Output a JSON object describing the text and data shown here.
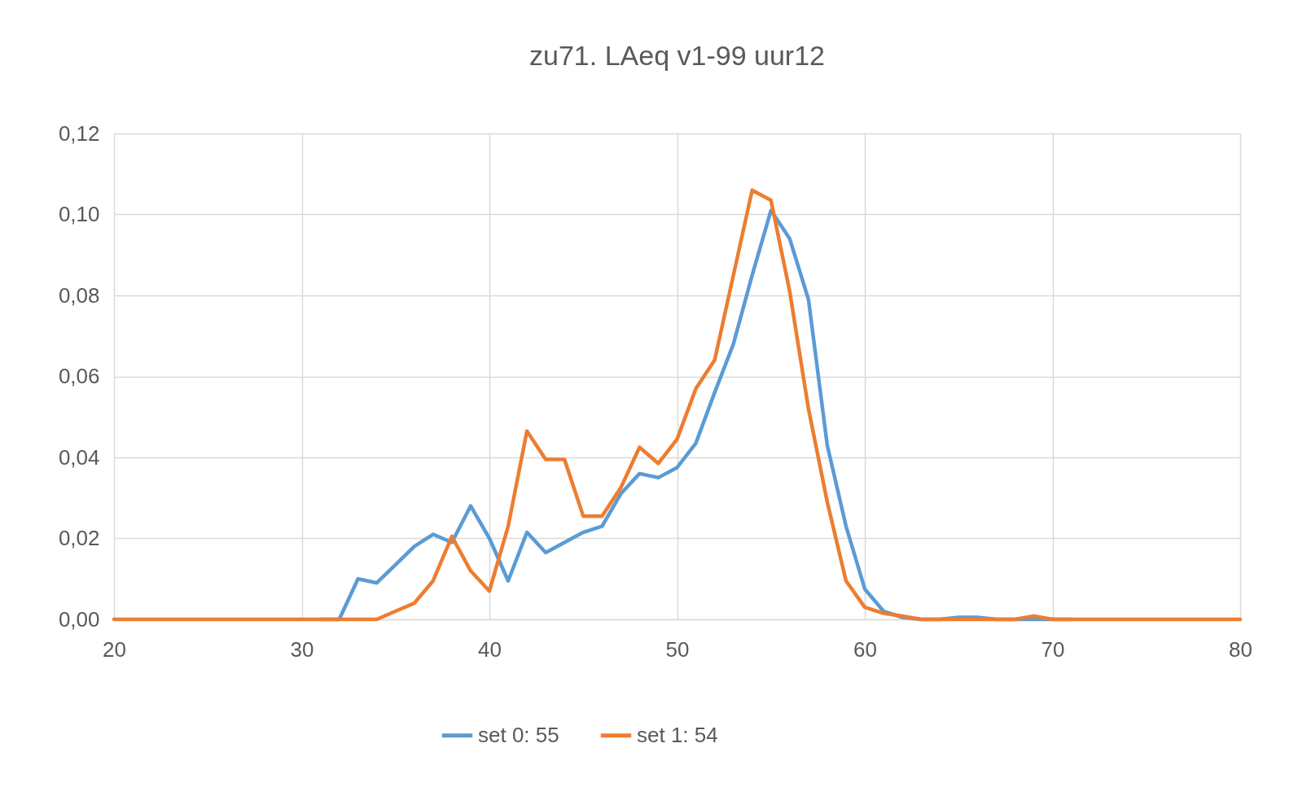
{
  "chart_data": {
    "type": "line",
    "title": "zu71. LAeq v1-99 uur12",
    "x": [
      20,
      21,
      22,
      23,
      24,
      25,
      26,
      27,
      28,
      29,
      30,
      31,
      32,
      33,
      34,
      35,
      36,
      37,
      38,
      39,
      40,
      41,
      42,
      43,
      44,
      45,
      46,
      47,
      48,
      49,
      50,
      51,
      52,
      53,
      54,
      55,
      56,
      57,
      58,
      59,
      60,
      61,
      62,
      63,
      64,
      65,
      66,
      67,
      68,
      69,
      70,
      71,
      72,
      73,
      74,
      75,
      76,
      77,
      78,
      79,
      80
    ],
    "series": [
      {
        "name": "set 0: 55",
        "color": "#5b9bd5",
        "values": [
          null,
          null,
          null,
          null,
          null,
          null,
          null,
          null,
          null,
          null,
          null,
          0,
          0,
          0.01,
          0.009,
          0.0135,
          0.018,
          0.021,
          0.019,
          0.028,
          0.02,
          0.0095,
          0.0215,
          0.0165,
          0.019,
          0.0215,
          0.023,
          0.031,
          0.036,
          0.035,
          0.0375,
          0.0435,
          0.056,
          0.068,
          0.085,
          0.101,
          0.094,
          0.079,
          0.043,
          0.023,
          0.0075,
          0.002,
          0.0005,
          0,
          0,
          0.0005,
          0.0005,
          0,
          0,
          0,
          0,
          0,
          null,
          null,
          null,
          null,
          null,
          null,
          null,
          null,
          null
        ]
      },
      {
        "name": "set 1: 54",
        "color": "#ed7d31",
        "values": [
          0,
          0,
          0,
          0,
          0,
          0,
          0,
          0,
          0,
          0,
          0,
          0,
          0,
          0,
          0,
          0.002,
          0.004,
          0.0095,
          0.0205,
          0.012,
          0.007,
          0.023,
          0.0465,
          0.0395,
          0.0395,
          0.0255,
          0.0255,
          0.0325,
          0.0425,
          0.0385,
          0.0445,
          0.057,
          0.064,
          0.085,
          0.106,
          0.1035,
          0.081,
          0.052,
          0.029,
          0.0095,
          0.003,
          0.0015,
          0.0008,
          0,
          0,
          0,
          0,
          0,
          0,
          0.0008,
          0,
          0,
          0,
          0,
          0,
          0,
          0,
          0,
          0,
          0,
          0
        ]
      }
    ],
    "xlim": [
      20,
      80
    ],
    "xticks": [
      20,
      30,
      40,
      50,
      60,
      70,
      80
    ],
    "ylim": [
      0,
      0.12
    ],
    "yticks": [
      {
        "value": 0,
        "label": "0,00"
      },
      {
        "value": 0.02,
        "label": "0,02"
      },
      {
        "value": 0.04,
        "label": "0,04"
      },
      {
        "value": 0.06,
        "label": "0,06"
      },
      {
        "value": 0.08,
        "label": "0,08"
      },
      {
        "value": 0.1,
        "label": "0,10"
      },
      {
        "value": 0.12,
        "label": "0,12"
      }
    ],
    "grid": true,
    "legend": "bottom",
    "marker": "none",
    "line_style": "solid"
  }
}
